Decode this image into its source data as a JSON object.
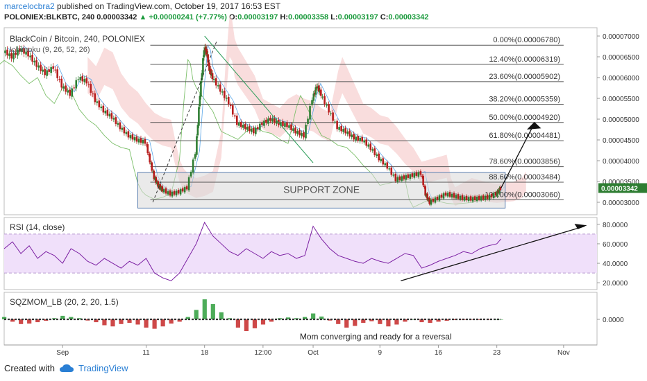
{
  "header": {
    "author": "marcelocbra2",
    "published": "published on TradingView.com, October 19, 2017 16:53 EST",
    "symbol": "POLONIEX:BLKBTC, 240",
    "price": "0.00003342",
    "arrow": "▲",
    "change": "+0.00000241 (+7.77%)",
    "o_label": "O:",
    "o_val": "0.00003197",
    "h_label": "H:",
    "h_val": "0.00003358",
    "l_label": "L:",
    "l_val": "0.00003197",
    "c_label": "C:",
    "c_val": "0.00003342"
  },
  "footer": {
    "created_with": "Created with",
    "brand": "TradingView"
  },
  "colors": {
    "up": "#2e7d32",
    "down": "#b71c1c",
    "rsi": "#7b1fa2",
    "rsi_band": "#f0e0fa",
    "cloud_red": "#f5c6c6",
    "cloud_green": "#c8e6c9",
    "support": "#d9d9d9",
    "fib": "#555555",
    "accent": "#2a7fd4"
  },
  "chart_data": [
    {
      "type": "line",
      "title": "BlackCoin / Bitcoin, 240, POLONIEX",
      "indicator": "Ichimoku (9, 26, 52, 26)",
      "ylim": [
        2.7e-05,
        7.2e-05
      ],
      "yticks": [
        "0.00007000",
        "0.00006500",
        "0.00006000",
        "0.00005500",
        "0.00005000",
        "0.00004500",
        "0.00004000",
        "0.00003500",
        "0.00003000"
      ],
      "ytick_values": [
        7e-05,
        6.5e-05,
        6e-05,
        5.5e-05,
        5e-05,
        4.5e-05,
        4e-05,
        3.5e-05,
        3e-05
      ],
      "last_price": "0.00003342",
      "last_price_value": 3.342e-05,
      "xticks": [
        "Sep",
        "11",
        "18",
        "12:00",
        "Oct",
        "9",
        "16",
        "23",
        "Nov"
      ],
      "xtick_days": [
        0,
        10,
        17,
        24,
        30,
        38,
        45,
        52,
        60
      ],
      "fib_levels": [
        {
          "label": "0.00%(0.00006780)",
          "value": 6.78e-05
        },
        {
          "label": "12.40%(0.00006319)",
          "value": 6.319e-05
        },
        {
          "label": "23.60%(0.00005902)",
          "value": 5.902e-05
        },
        {
          "label": "38.20%(0.00005359)",
          "value": 5.359e-05
        },
        {
          "label": "50.00%(0.00004920)",
          "value": 4.92e-05
        },
        {
          "label": "61.80%(0.00004481)",
          "value": 4.481e-05
        },
        {
          "label": "78.60%(0.00003856)",
          "value": 3.856e-05
        },
        {
          "label": "88.60%(0.00003484)",
          "value": 3.484e-05
        },
        {
          "label": "100.00%(0.00003060)",
          "value": 3.06e-05
        }
      ],
      "support_zone": {
        "label": "SUPPORT ZONE",
        "x_days": [
          9,
          53
        ],
        "y": [
          2.86e-05,
          3.72e-05
        ]
      },
      "price_path": [
        [
          -7,
          6.65e-05
        ],
        [
          -6,
          6.5e-05
        ],
        [
          -5,
          6.68e-05
        ],
        [
          -4,
          6.55e-05
        ],
        [
          -3,
          6.3e-05
        ],
        [
          -2,
          6.1e-05
        ],
        [
          -1,
          6.25e-05
        ],
        [
          0,
          5.8e-05
        ],
        [
          1,
          5.6e-05
        ],
        [
          2,
          6e-05
        ],
        [
          3,
          5.9e-05
        ],
        [
          4,
          5.45e-05
        ],
        [
          5,
          5.2e-05
        ],
        [
          6,
          5.05e-05
        ],
        [
          7,
          4.8e-05
        ],
        [
          8,
          4.6e-05
        ],
        [
          9,
          4.5e-05
        ],
        [
          10,
          4.45e-05
        ],
        [
          10.5,
          4e-05
        ],
        [
          11,
          3.6e-05
        ],
        [
          11.5,
          3.4e-05
        ],
        [
          12,
          3.3e-05
        ],
        [
          13,
          3.2e-05
        ],
        [
          14,
          3.25e-05
        ],
        [
          15,
          3.35e-05
        ],
        [
          16,
          4.2e-05
        ],
        [
          16.5,
          5.6e-05
        ],
        [
          17,
          6.7e-05
        ],
        [
          17.3,
          6.6e-05
        ],
        [
          17.6,
          6.2e-05
        ],
        [
          18,
          6e-05
        ],
        [
          19,
          5.7e-05
        ],
        [
          20,
          5.4e-05
        ],
        [
          21,
          4.9e-05
        ],
        [
          22,
          4.8e-05
        ],
        [
          23,
          4.7e-05
        ],
        [
          24,
          4.9e-05
        ],
        [
          25,
          5e-05
        ],
        [
          26,
          4.9e-05
        ],
        [
          27,
          4.85e-05
        ],
        [
          28,
          4.7e-05
        ],
        [
          29,
          4.6e-05
        ],
        [
          30,
          5.5e-05
        ],
        [
          30.5,
          5.8e-05
        ],
        [
          31,
          5.6e-05
        ],
        [
          32,
          5.2e-05
        ],
        [
          33,
          4.8e-05
        ],
        [
          34,
          4.7e-05
        ],
        [
          35,
          4.55e-05
        ],
        [
          36,
          4.5e-05
        ],
        [
          37,
          4.3e-05
        ],
        [
          38,
          4.05e-05
        ],
        [
          39,
          3.85e-05
        ],
        [
          40,
          3.55e-05
        ],
        [
          41,
          3.6e-05
        ],
        [
          42,
          3.65e-05
        ],
        [
          43,
          3.7e-05
        ],
        [
          43.5,
          3.2e-05
        ],
        [
          44,
          3e-05
        ],
        [
          45,
          3.1e-05
        ],
        [
          46,
          3.2e-05
        ],
        [
          47,
          3.15e-05
        ],
        [
          48,
          3.1e-05
        ],
        [
          49,
          3.08e-05
        ],
        [
          50,
          3.1e-05
        ],
        [
          51,
          3.12e-05
        ],
        [
          52,
          3.2e-05
        ],
        [
          52.5,
          3.34e-05
        ]
      ],
      "annotations": [
        "SUPPORT ZONE"
      ]
    },
    {
      "type": "line",
      "title": "RSI (14, close)",
      "ylim": [
        13,
        87
      ],
      "yticks": [
        "80.0000",
        "60.0000",
        "40.0000",
        "20.0000"
      ],
      "ytick_values": [
        80,
        60,
        40,
        20
      ],
      "band": [
        30,
        70
      ],
      "values": [
        [
          -7,
          55
        ],
        [
          -6,
          62
        ],
        [
          -5,
          50
        ],
        [
          -4,
          58
        ],
        [
          -3,
          45
        ],
        [
          -2,
          52
        ],
        [
          -1,
          48
        ],
        [
          0,
          40
        ],
        [
          1,
          55
        ],
        [
          2,
          50
        ],
        [
          3,
          42
        ],
        [
          4,
          38
        ],
        [
          5,
          45
        ],
        [
          6,
          40
        ],
        [
          7,
          35
        ],
        [
          8,
          42
        ],
        [
          9,
          38
        ],
        [
          10,
          45
        ],
        [
          11,
          30
        ],
        [
          12,
          25
        ],
        [
          13,
          22
        ],
        [
          14,
          30
        ],
        [
          15,
          45
        ],
        [
          16,
          60
        ],
        [
          17,
          82
        ],
        [
          18,
          68
        ],
        [
          19,
          60
        ],
        [
          20,
          52
        ],
        [
          21,
          48
        ],
        [
          22,
          55
        ],
        [
          23,
          50
        ],
        [
          24,
          45
        ],
        [
          25,
          52
        ],
        [
          26,
          48
        ],
        [
          27,
          50
        ],
        [
          28,
          45
        ],
        [
          29,
          48
        ],
        [
          30,
          78
        ],
        [
          31,
          65
        ],
        [
          32,
          55
        ],
        [
          33,
          48
        ],
        [
          34,
          45
        ],
        [
          35,
          42
        ],
        [
          36,
          40
        ],
        [
          37,
          45
        ],
        [
          38,
          42
        ],
        [
          39,
          40
        ],
        [
          40,
          45
        ],
        [
          41,
          50
        ],
        [
          42,
          48
        ],
        [
          43,
          35
        ],
        [
          44,
          38
        ],
        [
          45,
          42
        ],
        [
          46,
          45
        ],
        [
          47,
          48
        ],
        [
          48,
          52
        ],
        [
          49,
          50
        ],
        [
          50,
          55
        ],
        [
          51,
          58
        ],
        [
          52,
          60
        ],
        [
          52.5,
          65
        ]
      ]
    },
    {
      "type": "bar",
      "title": "SQZMOM_LB (20, 2, 20, 1.5)",
      "ylim": [
        -1,
        1
      ],
      "yticks": [
        "0.0000"
      ],
      "ytick_values": [
        0
      ],
      "annotation": "Mom converging and ready for a reversal",
      "values": [
        [
          -7,
          0.1
        ],
        [
          -6,
          -0.1
        ],
        [
          -5,
          -0.2
        ],
        [
          -4,
          -0.18
        ],
        [
          -3,
          -0.12
        ],
        [
          -2,
          -0.06
        ],
        [
          -1,
          0.05
        ],
        [
          0,
          0.15
        ],
        [
          1,
          0.1
        ],
        [
          2,
          0.05
        ],
        [
          3,
          -0.05
        ],
        [
          4,
          -0.12
        ],
        [
          5,
          -0.25
        ],
        [
          6,
          -0.3
        ],
        [
          7,
          -0.2
        ],
        [
          8,
          -0.15
        ],
        [
          9,
          -0.22
        ],
        [
          10,
          -0.35
        ],
        [
          11,
          -0.4
        ],
        [
          12,
          -0.3
        ],
        [
          13,
          -0.18
        ],
        [
          14,
          -0.1
        ],
        [
          15,
          0.1
        ],
        [
          16,
          0.4
        ],
        [
          17,
          0.85
        ],
        [
          18,
          0.65
        ],
        [
          19,
          0.3
        ],
        [
          20,
          0.05
        ],
        [
          21,
          -0.35
        ],
        [
          22,
          -0.5
        ],
        [
          23,
          -0.38
        ],
        [
          24,
          -0.22
        ],
        [
          25,
          -0.1
        ],
        [
          26,
          0.05
        ],
        [
          27,
          0.08
        ],
        [
          28,
          0.05
        ],
        [
          29,
          0.1
        ],
        [
          30,
          0.25
        ],
        [
          31,
          0.12
        ],
        [
          32,
          -0.05
        ],
        [
          33,
          -0.2
        ],
        [
          34,
          -0.35
        ],
        [
          35,
          -0.28
        ],
        [
          36,
          -0.15
        ],
        [
          37,
          -0.08
        ],
        [
          38,
          -0.2
        ],
        [
          39,
          -0.3
        ],
        [
          40,
          -0.22
        ],
        [
          41,
          -0.1
        ],
        [
          42,
          0.0
        ],
        [
          43,
          -0.12
        ],
        [
          44,
          -0.15
        ],
        [
          45,
          -0.1
        ],
        [
          46,
          -0.06
        ],
        [
          47,
          -0.03
        ],
        [
          48,
          -0.02
        ],
        [
          49,
          -0.01
        ],
        [
          50,
          -0.02
        ],
        [
          51,
          -0.01
        ],
        [
          52,
          0.0
        ],
        [
          52.5,
          0.0
        ]
      ]
    }
  ]
}
